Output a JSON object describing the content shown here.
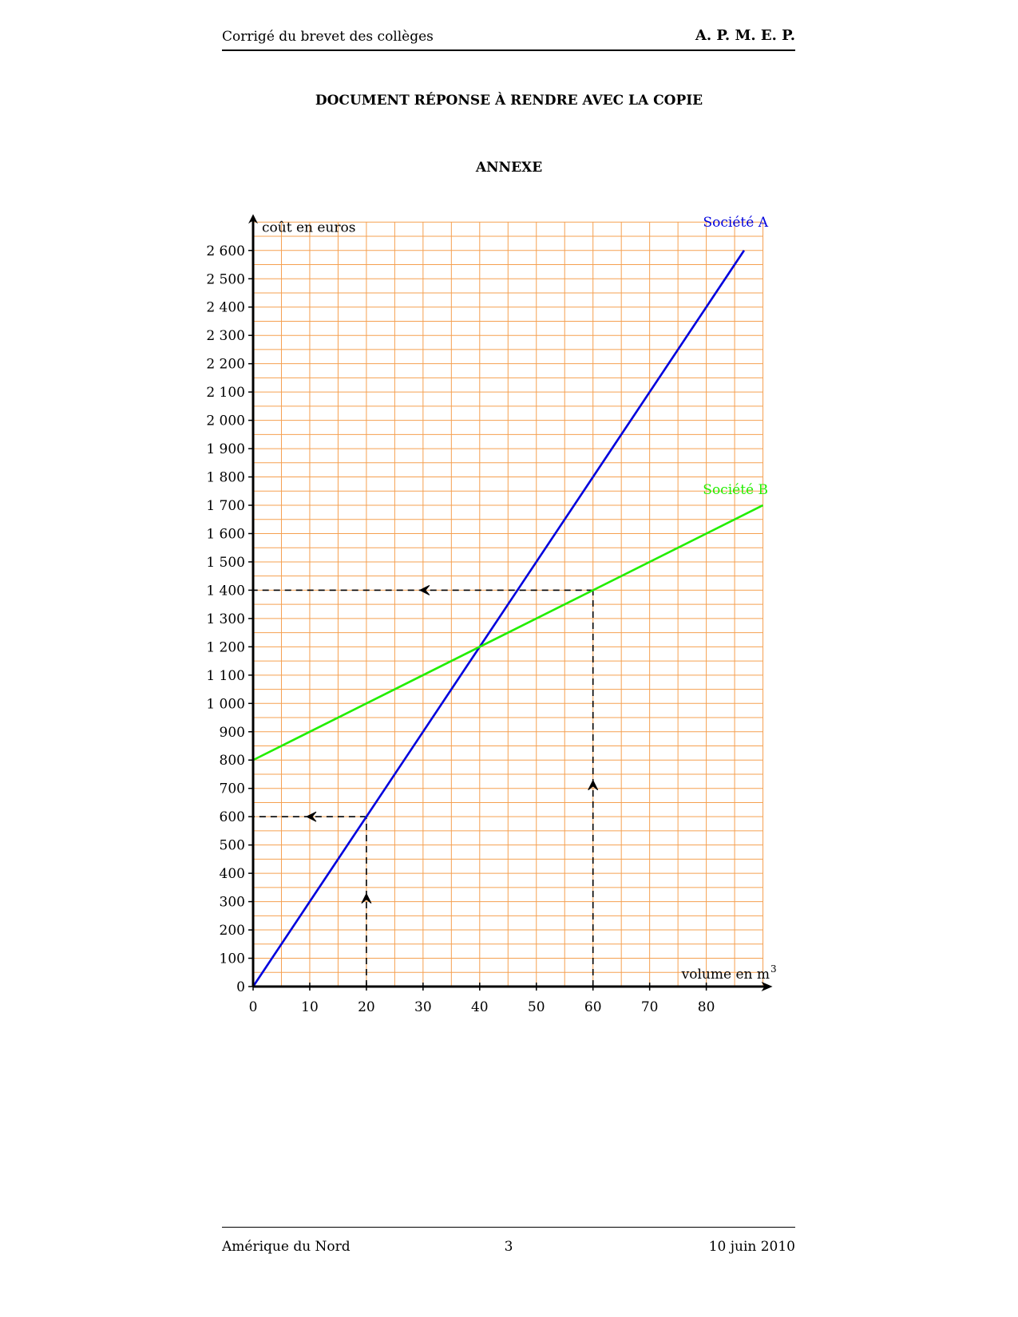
{
  "header": {
    "left": "Corrigé du brevet des collèges",
    "right": "A. P. M. E. P."
  },
  "titles": {
    "main": "DOCUMENT RÉPONSE À RENDRE AVEC LA COPIE",
    "sub": "ANNEXE"
  },
  "footer": {
    "left": "Amérique du Nord",
    "center": "3",
    "right": "10 juin 2010"
  },
  "colors": {
    "grid": "#f5a050",
    "seriesA": "#0000dd",
    "seriesB": "#22ee00",
    "axis": "#000000"
  },
  "chart_data": {
    "type": "line",
    "ylabel": "coût en euros",
    "xlabel": "volume en m",
    "xlabel_sup": "3",
    "xlim": [
      0,
      90
    ],
    "ylim": [
      0,
      2700
    ],
    "grid": true,
    "x_ticks": [
      0,
      10,
      20,
      30,
      40,
      50,
      60,
      70,
      80
    ],
    "x_tick_labels": [
      "0",
      "10",
      "20",
      "30",
      "40",
      "50",
      "60",
      "70",
      "80"
    ],
    "y_ticks": [
      0,
      100,
      200,
      300,
      400,
      500,
      600,
      700,
      800,
      900,
      1000,
      1100,
      1200,
      1300,
      1400,
      1500,
      1600,
      1700,
      1800,
      1900,
      2000,
      2100,
      2200,
      2300,
      2400,
      2500,
      2600
    ],
    "y_tick_labels": [
      "0",
      "100",
      "200",
      "300",
      "400",
      "500",
      "600",
      "700",
      "800",
      "900",
      "1 000",
      "1 100",
      "1 200",
      "1 300",
      "1 400",
      "1 500",
      "1 600",
      "1 700",
      "1 800",
      "1 900",
      "2 000",
      "2 100",
      "2 200",
      "2 300",
      "2 400",
      "2 500",
      "2 600"
    ],
    "series": [
      {
        "name": "Société A",
        "x": [
          0,
          86.67
        ],
        "y": [
          0,
          2600
        ]
      },
      {
        "name": "Société B",
        "x": [
          0,
          90
        ],
        "y": [
          800,
          1700
        ]
      }
    ],
    "annotations": [
      {
        "from": [
          20,
          0
        ],
        "corner": [
          20,
          600
        ],
        "to": [
          0,
          600
        ]
      },
      {
        "from": [
          60,
          0
        ],
        "corner": [
          60,
          1400
        ],
        "to": [
          0,
          1400
        ]
      }
    ]
  }
}
